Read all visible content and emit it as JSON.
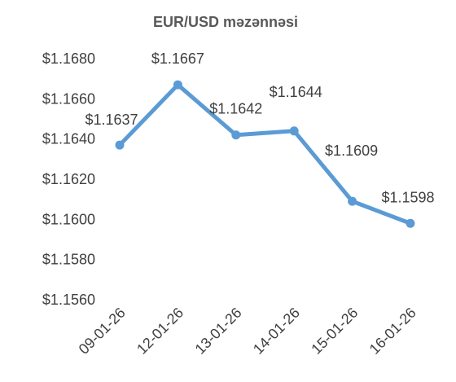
{
  "chart_data": {
    "type": "line",
    "title": "EUR/USD məzənnəsi",
    "categories": [
      "09-01-26",
      "12-01-26",
      "13-01-26",
      "14-01-26",
      "15-01-26",
      "16-01-26"
    ],
    "values": [
      1.1637,
      1.1667,
      1.1642,
      1.1644,
      1.1609,
      1.1598
    ],
    "data_labels": [
      "$1.1637",
      "$1.1667",
      "$1.1642",
      "$1.1644",
      "$1.1609",
      "$1.1598"
    ],
    "y_ticks": [
      1.156,
      1.158,
      1.16,
      1.162,
      1.164,
      1.166,
      1.168
    ],
    "y_tick_labels": [
      "$1.1560",
      "$1.1580",
      "$1.1600",
      "$1.1620",
      "$1.1640",
      "$1.1660",
      "$1.1680"
    ],
    "ylim": [
      1.156,
      1.168
    ],
    "grid": false,
    "legend": "none",
    "series_color": "#5B9BD5"
  }
}
